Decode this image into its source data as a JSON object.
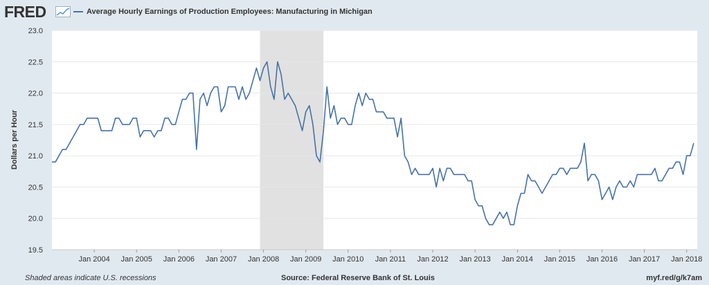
{
  "header": {
    "logo_text": "FRED",
    "logo_icon": "fred-trend-icon",
    "series_title": "Average Hourly Earnings of Production Employees: Manufacturing in Michigan"
  },
  "footer": {
    "note": "Shaded areas indicate U.S. recessions",
    "source": "Source: Federal Reserve Bank of St. Louis",
    "url": "myf.red/g/k7am"
  },
  "colors": {
    "line": "#4572a7",
    "plot_background": "#ffffff",
    "page_background": "#e1e9f0",
    "recession": "#e1e1e1",
    "grid": "#e6e6e6"
  },
  "chart_data": {
    "type": "line",
    "title": "",
    "xlabel": "",
    "ylabel": "Dollars per Hour",
    "x_start": "2003-01",
    "x_end": "2018-04",
    "ylim": [
      19.5,
      23.0
    ],
    "yticks": [
      19.5,
      20.0,
      20.5,
      21.0,
      21.5,
      22.0,
      22.5,
      23.0
    ],
    "ytick_labels": [
      "19.5",
      "20.0",
      "20.5",
      "21.0",
      "21.5",
      "22.0",
      "22.5",
      "23.0"
    ],
    "xticks": [
      "2004-01",
      "2005-01",
      "2006-01",
      "2007-01",
      "2008-01",
      "2009-01",
      "2010-01",
      "2011-01",
      "2012-01",
      "2013-01",
      "2014-01",
      "2015-01",
      "2016-01",
      "2017-01",
      "2018-01"
    ],
    "xtick_labels": [
      "Jan 2004",
      "Jan 2005",
      "Jan 2006",
      "Jan 2007",
      "Jan 2008",
      "Jan 2009",
      "Jan 2010",
      "Jan 2011",
      "Jan 2012",
      "Jan 2013",
      "Jan 2014",
      "Jan 2015",
      "Jan 2016",
      "Jan 2017",
      "Jan 2018"
    ],
    "grid": true,
    "recessions": [
      {
        "start": "2007-12",
        "end": "2009-06"
      }
    ],
    "series": [
      {
        "start": "2003-01",
        "frequency": "monthly",
        "values": [
          20.9,
          20.9,
          21.0,
          21.1,
          21.1,
          21.2,
          21.3,
          21.4,
          21.5,
          21.5,
          21.6,
          21.6,
          21.6,
          21.6,
          21.4,
          21.4,
          21.4,
          21.4,
          21.6,
          21.6,
          21.5,
          21.5,
          21.5,
          21.6,
          21.6,
          21.3,
          21.4,
          21.4,
          21.4,
          21.3,
          21.4,
          21.4,
          21.6,
          21.6,
          21.5,
          21.5,
          21.7,
          21.9,
          21.9,
          22.0,
          22.0,
          21.1,
          21.9,
          22.0,
          21.8,
          22.0,
          22.1,
          22.1,
          21.7,
          21.8,
          22.1,
          22.1,
          22.1,
          21.9,
          22.1,
          21.9,
          22.0,
          22.2,
          22.4,
          22.2,
          22.4,
          22.5,
          22.1,
          21.9,
          22.5,
          22.3,
          21.9,
          22.0,
          21.9,
          21.8,
          21.6,
          21.4,
          21.7,
          21.8,
          21.5,
          21.0,
          20.9,
          21.4,
          22.1,
          21.6,
          21.8,
          21.5,
          21.6,
          21.6,
          21.5,
          21.5,
          21.8,
          22.0,
          21.8,
          22.0,
          21.9,
          21.9,
          21.7,
          21.7,
          21.7,
          21.6,
          21.6,
          21.6,
          21.3,
          21.6,
          21.0,
          20.9,
          20.7,
          20.8,
          20.7,
          20.7,
          20.7,
          20.7,
          20.8,
          20.5,
          20.8,
          20.6,
          20.8,
          20.8,
          20.7,
          20.7,
          20.7,
          20.7,
          20.6,
          20.6,
          20.3,
          20.2,
          20.2,
          20.0,
          19.9,
          19.9,
          20.0,
          20.1,
          20.0,
          20.1,
          19.9,
          19.9,
          20.2,
          20.4,
          20.4,
          20.7,
          20.6,
          20.6,
          20.5,
          20.4,
          20.5,
          20.6,
          20.7,
          20.7,
          20.8,
          20.8,
          20.7,
          20.8,
          20.8,
          20.8,
          20.9,
          21.2,
          20.6,
          20.7,
          20.7,
          20.6,
          20.3,
          20.4,
          20.5,
          20.3,
          20.5,
          20.6,
          20.5,
          20.5,
          20.6,
          20.5,
          20.7,
          20.7,
          20.7,
          20.7,
          20.7,
          20.8,
          20.6,
          20.6,
          20.7,
          20.8,
          20.8,
          20.9,
          20.9,
          20.7,
          21.0,
          21.0,
          21.2
        ]
      }
    ]
  }
}
